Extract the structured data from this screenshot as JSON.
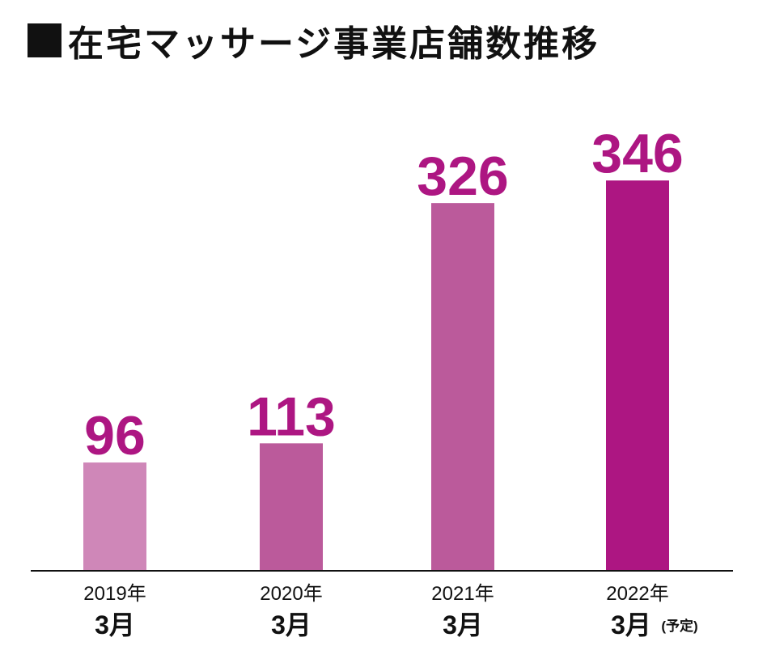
{
  "chart_data": {
    "type": "bar",
    "title": "在宅マッサージ事業店舗数推移",
    "categories": [
      {
        "year": "2019年",
        "month": "3月",
        "note": ""
      },
      {
        "year": "2020年",
        "month": "3月",
        "note": ""
      },
      {
        "year": "2021年",
        "month": "3月",
        "note": ""
      },
      {
        "year": "2022年",
        "month": "3月",
        "note": "(予定)"
      }
    ],
    "values": [
      96,
      113,
      326,
      346
    ],
    "bar_colors": [
      "#cf87b8",
      "#bb5a9b",
      "#bb5a9b",
      "#ad1682"
    ],
    "label_color": "#ad1682",
    "ylim": [
      0,
      420
    ],
    "grid": false,
    "legend": "none"
  }
}
